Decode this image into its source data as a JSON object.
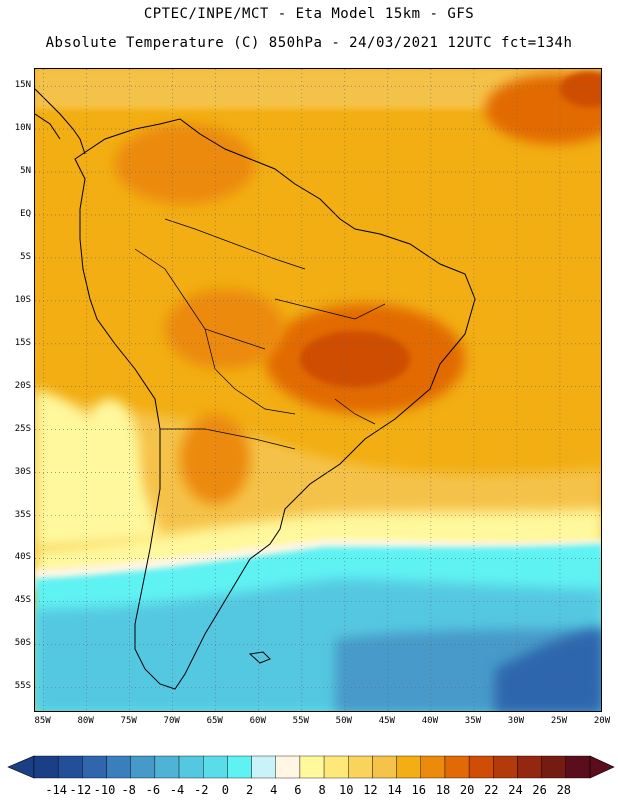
{
  "header": {
    "line1": "CPTEC/INPE/MCT -  Eta Model 15km - GFS",
    "line2": "Absolute Temperature (C) 850hPa - 24/03/2021 12UTC fct=134h"
  },
  "map": {
    "lat_labels": [
      "15N",
      "10N",
      "5N",
      "EQ",
      "5S",
      "10S",
      "15S",
      "20S",
      "25S",
      "30S",
      "35S",
      "40S",
      "45S",
      "50S",
      "55S"
    ],
    "lon_labels": [
      "85W",
      "80W",
      "75W",
      "70W",
      "65W",
      "60W",
      "55W",
      "50W",
      "45W",
      "40W",
      "35W",
      "30W",
      "25W",
      "20W"
    ],
    "lat_values": [
      15,
      10,
      5,
      0,
      -5,
      -10,
      -15,
      -20,
      -25,
      -30,
      -35,
      -40,
      -45,
      -50,
      -55
    ],
    "lon_values": [
      -85,
      -80,
      -75,
      -70,
      -65,
      -60,
      -55,
      -50,
      -45,
      -40,
      -35,
      -30,
      -25,
      -20
    ],
    "extent": {
      "lon_min": -86,
      "lon_max": -20,
      "lat_min": -58,
      "lat_max": 17
    },
    "grid": "dotted",
    "ocean_color": "#f2ae12",
    "land_color": "#f0a514"
  },
  "legend": {
    "labels": [
      "-14",
      "-12",
      "-10",
      "-8",
      "-6",
      "-4",
      "-2",
      "0",
      "2",
      "4",
      "6",
      "8",
      "10",
      "12",
      "14",
      "16",
      "18",
      "20",
      "22",
      "24",
      "26",
      "28"
    ],
    "colors": [
      "#1a3f86",
      "#224f98",
      "#2f66ae",
      "#3a7fbd",
      "#469ac9",
      "#4fb3d6",
      "#54c8e1",
      "#5bdde9",
      "#5ff2f3",
      "#c9f2f9",
      "#fff6e4",
      "#fff89c",
      "#ffe87a",
      "#f8d45c",
      "#f5c24a",
      "#f2ae12",
      "#ec8a0c",
      "#e26a06",
      "#cf4d06",
      "#b33a0a",
      "#94270f",
      "#741b12",
      "#5a0e1c"
    ]
  }
}
